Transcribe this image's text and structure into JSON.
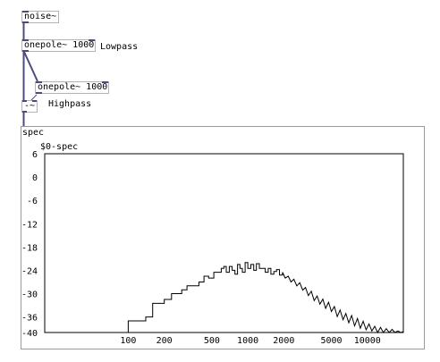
{
  "objects": {
    "noise": "noise~",
    "lowpass_obj": "onepole~ 1000",
    "highpass_obj": "onepole~ 1000",
    "subtract": "-~"
  },
  "comments": {
    "lowpass": "Lowpass",
    "highpass": "Highpass"
  },
  "graph": {
    "canvas_label": "spec",
    "array_name": "$0-spec"
  },
  "colors": {
    "patch_cord": "#4c4c7a",
    "box_border": "#b4b4b4",
    "plot_line": "#000000"
  },
  "chart_data": {
    "type": "line",
    "title": "$0-spec",
    "ylim": [
      -40,
      6
    ],
    "yticks": [
      "6",
      "0",
      "-6",
      "-12",
      "-18",
      "-24",
      "-30",
      "-36",
      "-40"
    ],
    "xticks": [
      "100",
      "200",
      "500",
      "1000",
      "2000",
      "5000",
      "10000"
    ],
    "xlim": [
      20,
      20000
    ],
    "xscale": "log",
    "series": [
      {
        "x": [
          20,
          40,
          63,
          70,
          80,
          90,
          100,
          120,
          140,
          150,
          160,
          180,
          200,
          230,
          250,
          280,
          310,
          350,
          390,
          430,
          470,
          520,
          560,
          600,
          630,
          660,
          700,
          740,
          780,
          820,
          860,
          900,
          950,
          1000,
          1060,
          1120,
          1180,
          1250,
          1320,
          1400,
          1480,
          1560,
          1650,
          1740,
          1840,
          1950,
          2060,
          2180,
          2300,
          2430,
          2570,
          2720,
          2880,
          3040,
          3210,
          3400,
          3590,
          3800,
          4010,
          4240,
          4480,
          4740,
          5010,
          5300,
          5600,
          5920,
          6260,
          6610,
          6990,
          7390,
          7820,
          8260,
          8730,
          9230,
          9760,
          10320,
          10910,
          11530,
          12190,
          12890,
          13620,
          14400,
          15230,
          16100,
          17000,
          18000,
          19000,
          20000
        ],
        "values": [
          -40,
          -40,
          -40,
          -40,
          -40,
          -40,
          -37,
          -37,
          -36,
          -36,
          -32.5,
          -32.5,
          -31.5,
          -30,
          -30,
          -29,
          -28,
          -28,
          -27,
          -25.5,
          -26,
          -24.5,
          -24.5,
          -23.5,
          -23,
          -24.5,
          -23,
          -24,
          -25,
          -22.5,
          -23.5,
          -24.5,
          -22,
          -23.5,
          -22.5,
          -24,
          -22.3,
          -23.5,
          -23.5,
          -24.5,
          -23.5,
          -25,
          -24.3,
          -23.8,
          -25.2,
          -24.5,
          -26,
          -25.5,
          -27,
          -26.3,
          -28,
          -27.2,
          -29.1,
          -28.4,
          -30.5,
          -29.4,
          -31.8,
          -30.6,
          -32.7,
          -31.4,
          -33.8,
          -32.2,
          -34.6,
          -33.3,
          -35.9,
          -34.2,
          -36.7,
          -35.1,
          -37.5,
          -35.6,
          -38.3,
          -36.4,
          -38.9,
          -37.1,
          -39.3,
          -37.8,
          -39.6,
          -38.4,
          -40,
          -38.7,
          -40,
          -39,
          -40,
          -39.2,
          -40,
          -39.6,
          -40,
          -39.8
        ]
      }
    ]
  }
}
